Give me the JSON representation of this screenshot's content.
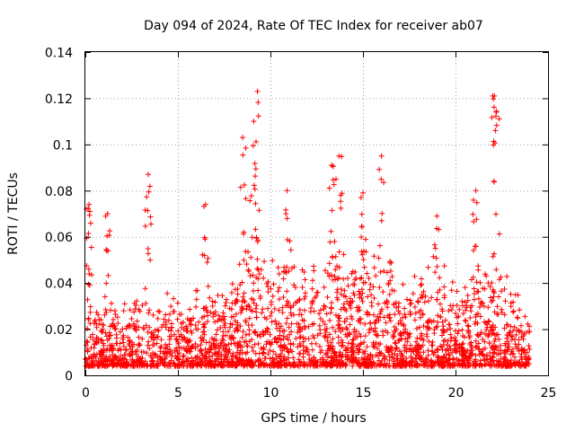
{
  "chart_data": {
    "type": "scatter",
    "title": "Day 094 of 2024, Rate Of TEC Index for receiver ab07",
    "xlabel": "GPS time / hours",
    "ylabel": "ROTI / TECUs",
    "xlim": [
      0,
      25
    ],
    "ylim": [
      0,
      0.14
    ],
    "x_ticks": [
      "0",
      "5",
      "10",
      "15",
      "20",
      "25"
    ],
    "y_ticks": [
      "0",
      "0.02",
      "0.04",
      "0.06",
      "0.08",
      "0.1",
      "0.12",
      "0.14"
    ],
    "grid": true,
    "marker": "+",
    "colors": {
      "points": "#ff0000",
      "grid": "#a0a0a0",
      "axes": "#000000"
    },
    "envelope": {
      "description_hours": [
        0.0,
        0.2,
        0.5,
        1.0,
        1.2,
        1.5,
        2.0,
        2.5,
        3.0,
        3.3,
        3.5,
        3.8,
        4.0,
        4.5,
        5.0,
        5.5,
        6.0,
        6.5,
        7.0,
        7.5,
        8.0,
        8.5,
        8.8,
        9.2,
        9.5,
        10.0,
        10.5,
        11.0,
        11.5,
        12.0,
        12.5,
        13.0,
        13.5,
        14.0,
        14.5,
        15.0,
        15.5,
        16.0,
        16.5,
        17.0,
        17.5,
        18.0,
        18.5,
        19.0,
        19.5,
        20.0,
        20.5,
        21.0,
        21.5,
        22.0,
        22.3,
        22.7,
        23.0,
        23.5,
        24.0
      ],
      "typical_max_roti": [
        0.025,
        0.05,
        0.03,
        0.03,
        0.055,
        0.035,
        0.025,
        0.035,
        0.03,
        0.05,
        0.04,
        0.025,
        0.03,
        0.04,
        0.035,
        0.03,
        0.04,
        0.04,
        0.035,
        0.035,
        0.045,
        0.06,
        0.07,
        0.08,
        0.055,
        0.045,
        0.05,
        0.055,
        0.045,
        0.05,
        0.045,
        0.06,
        0.065,
        0.055,
        0.05,
        0.065,
        0.05,
        0.065,
        0.055,
        0.045,
        0.045,
        0.04,
        0.045,
        0.055,
        0.05,
        0.04,
        0.04,
        0.05,
        0.045,
        0.055,
        0.05,
        0.04,
        0.045,
        0.035,
        0.02
      ]
    },
    "peaks": [
      {
        "x": 0.2,
        "y": 0.074
      },
      {
        "x": 1.2,
        "y": 0.07
      },
      {
        "x": 3.4,
        "y": 0.087
      },
      {
        "x": 6.5,
        "y": 0.074
      },
      {
        "x": 8.5,
        "y": 0.103
      },
      {
        "x": 9.1,
        "y": 0.11
      },
      {
        "x": 9.3,
        "y": 0.123
      },
      {
        "x": 10.9,
        "y": 0.08
      },
      {
        "x": 13.3,
        "y": 0.091
      },
      {
        "x": 13.7,
        "y": 0.095
      },
      {
        "x": 15.0,
        "y": 0.079
      },
      {
        "x": 16.0,
        "y": 0.095
      },
      {
        "x": 19.0,
        "y": 0.069
      },
      {
        "x": 21.1,
        "y": 0.08
      },
      {
        "x": 22.1,
        "y": 0.121
      },
      {
        "x": 22.2,
        "y": 0.114
      }
    ]
  }
}
